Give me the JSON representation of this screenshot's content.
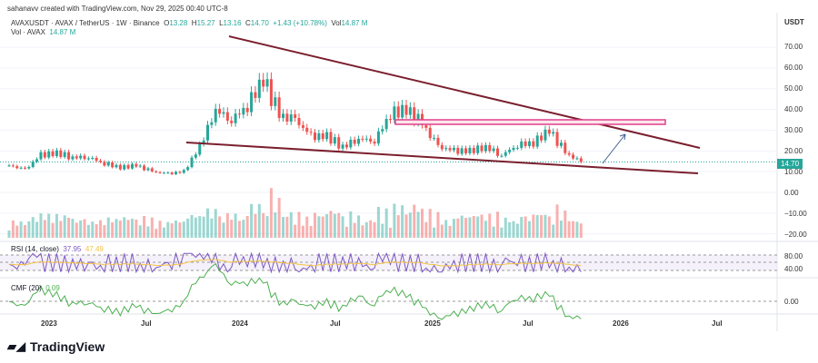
{
  "credit": "sahanavv created with TradingView.com, Nov 29, 2025 00:40 UTC-8",
  "legend": {
    "symbol": "AVAXUSDT · AVAX / TetherUS · 1W · Binance",
    "o_label": "O",
    "o": "13.28",
    "h_label": "H",
    "h": "15.27",
    "l_label": "L",
    "l": "13.16",
    "c_label": "C",
    "c": "14.70",
    "change": "+1.43 (+10.78%)",
    "vol_label": "Vol",
    "vol": "14.87 M",
    "vol_row_label": "Vol · AVAX",
    "vol_row_value": "14.87 M"
  },
  "currency": "USDT",
  "last_price": "14.70",
  "price_axis": [
    "70.00",
    "60.00",
    "50.00",
    "40.00",
    "30.00",
    "20.00",
    "10.00",
    "0.00",
    "−10.00",
    "−20.00"
  ],
  "rsi": {
    "label": "RSI (14, close)",
    "value": "37.95",
    "ma": "47.49",
    "axis": [
      "80.00",
      "40.00"
    ]
  },
  "cmf": {
    "label": "CMF (20)",
    "value": "0.09",
    "axis": [
      "0.00"
    ]
  },
  "time_axis": [
    "2023",
    "Jul",
    "2024",
    "Jul",
    "2025",
    "Jul",
    "2026",
    "Jul"
  ],
  "brand": "TradingView",
  "colors": {
    "up": "#26a69a",
    "down": "#ef5350",
    "trendline": "#7b1f2e",
    "zone": "#e0408a",
    "rsi": "#7e57c2",
    "rsi_ma": "#f5c242",
    "cmf": "#4caf50"
  },
  "chart_data": {
    "type": "candlestick",
    "interval": "1W",
    "months": [
      "2022-11",
      "2022-12",
      "2023-01",
      "2023-02",
      "2023-03",
      "2023-04",
      "2023-05",
      "2023-06",
      "2023-07",
      "2023-08",
      "2023-09",
      "2023-10",
      "2023-11",
      "2023-12",
      "2024-01",
      "2024-02",
      "2024-03",
      "2024-04",
      "2024-05",
      "2024-06",
      "2024-07",
      "2024-08",
      "2024-09",
      "2024-10",
      "2024-11",
      "2024-12",
      "2025-01",
      "2025-02",
      "2025-03",
      "2025-04",
      "2025-05",
      "2025-06",
      "2025-07",
      "2025-08",
      "2025-09",
      "2025-10",
      "2025-11"
    ],
    "approx_monthly_close": [
      13,
      11,
      18,
      19,
      17,
      17,
      14,
      12,
      13,
      10,
      9,
      10,
      22,
      40,
      35,
      42,
      55,
      37,
      35,
      27,
      27,
      22,
      26,
      25,
      38,
      40,
      33,
      22,
      20,
      20,
      22,
      18,
      23,
      24,
      30,
      19,
      14.7
    ],
    "ylim": [
      -20,
      75
    ],
    "annotations": [
      "descending wedge",
      "resistance zone 33-35",
      "projected breakout arrow"
    ]
  }
}
